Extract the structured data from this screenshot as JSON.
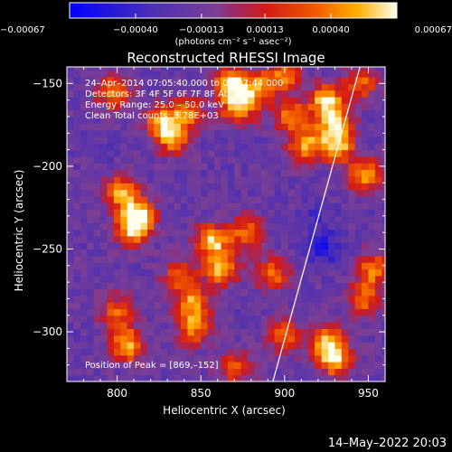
{
  "chart_data": {
    "type": "heatmap",
    "title": "Reconstructed RHESSI Image",
    "xlabel": "Heliocentric X (arcsec)",
    "ylabel": "Heliocentric Y (arcsec)",
    "xlim": [
      770,
      960
    ],
    "ylim": [
      -330,
      -140
    ],
    "x_ticks": [
      800,
      850,
      900,
      950
    ],
    "x_tick_labels": [
      "800",
      "850",
      "900",
      "950"
    ],
    "y_ticks": [
      -150,
      -200,
      -250,
      -300
    ],
    "y_tick_labels": [
      "−150",
      "−200",
      "−250",
      "−300"
    ],
    "colorbar": {
      "vmin": -0.00067,
      "vmax": 0.00067,
      "ticks": [
        -0.00067,
        -0.0004,
        -0.00013,
        0.00013,
        0.0004,
        0.00067
      ],
      "tick_labels": [
        "−0.00067",
        "−0.00040",
        "−0.00013",
        "0.00013",
        "0.00040",
        "0.00067"
      ],
      "unit_label": "(photons cm⁻² s⁻¹ asec⁻²)"
    },
    "annotations": {
      "time": "24–Apr–2014 07:05:40.000 to 07:07:44.000",
      "detectors": "Detectors: 3F 4F 5F 6F 7F 8F  Att 0",
      "energy": "Energy Range: 25.0 – 50.0 keV",
      "clean": "Clean    Total counts: 3.78E+03",
      "peak": "Position of Peak = [869,–152]"
    },
    "limb_line": {
      "x": [
        893,
        945
      ],
      "y": [
        -330,
        -140
      ]
    },
    "peak_position": [
      869,
      -152
    ],
    "intensity_blobs": [
      {
        "x": 810,
        "y": -237,
        "value": 0.00062
      },
      {
        "x": 812,
        "y": -228,
        "value": 0.0005
      },
      {
        "x": 802,
        "y": -215,
        "value": 0.00045
      },
      {
        "x": 798,
        "y": -155,
        "value": 0.00045
      },
      {
        "x": 826,
        "y": -172,
        "value": 0.0004
      },
      {
        "x": 833,
        "y": -182,
        "value": 0.0005
      },
      {
        "x": 842,
        "y": -167,
        "value": 0.00035
      },
      {
        "x": 868,
        "y": -150,
        "value": 0.00066
      },
      {
        "x": 872,
        "y": -165,
        "value": 0.0005
      },
      {
        "x": 884,
        "y": -153,
        "value": 0.00045
      },
      {
        "x": 904,
        "y": -170,
        "value": 0.00045
      },
      {
        "x": 913,
        "y": -187,
        "value": 0.0005
      },
      {
        "x": 925,
        "y": -160,
        "value": 0.0006
      },
      {
        "x": 930,
        "y": -175,
        "value": 0.00056
      },
      {
        "x": 932,
        "y": -188,
        "value": 0.00045
      },
      {
        "x": 948,
        "y": -205,
        "value": 0.00045
      },
      {
        "x": 857,
        "y": -245,
        "value": 0.00058
      },
      {
        "x": 862,
        "y": -262,
        "value": 0.0005
      },
      {
        "x": 845,
        "y": -283,
        "value": 0.00045
      },
      {
        "x": 838,
        "y": -266,
        "value": 0.00035
      },
      {
        "x": 877,
        "y": -240,
        "value": 0.00035
      },
      {
        "x": 893,
        "y": -265,
        "value": 0.00035
      },
      {
        "x": 953,
        "y": -262,
        "value": 0.00042
      },
      {
        "x": 948,
        "y": -280,
        "value": 0.00035
      },
      {
        "x": 926,
        "y": -307,
        "value": 0.00058
      },
      {
        "x": 931,
        "y": -318,
        "value": 0.00045
      },
      {
        "x": 806,
        "y": -308,
        "value": 0.00055
      },
      {
        "x": 800,
        "y": -288,
        "value": 0.00035
      },
      {
        "x": 846,
        "y": -298,
        "value": 0.00035
      },
      {
        "x": 900,
        "y": -302,
        "value": 0.00035
      },
      {
        "x": 870,
        "y": -322,
        "value": 0.0003
      },
      {
        "x": 900,
        "y": -145,
        "value": 0.0004
      },
      {
        "x": 945,
        "y": -150,
        "value": 0.00035
      },
      {
        "x": 924,
        "y": -250,
        "value": -0.0005
      },
      {
        "x": 918,
        "y": -232,
        "value": -0.00035
      },
      {
        "x": 790,
        "y": -190,
        "value": -0.00025
      }
    ]
  },
  "footer": {
    "date": "14–May–2022 20:03"
  }
}
